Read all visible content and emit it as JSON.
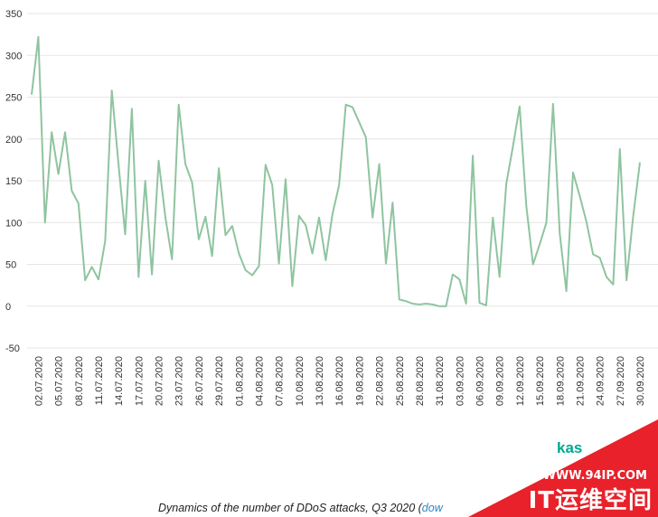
{
  "chart_data": {
    "type": "line",
    "title": "",
    "xlabel": "",
    "ylabel": "",
    "ylim": [
      -50,
      350
    ],
    "yticks": [
      350,
      300,
      250,
      200,
      150,
      100,
      50,
      0,
      -50
    ],
    "grid": true,
    "legend": "none",
    "line_color": "#8fc4a0",
    "tick_labels": [
      "02.07.2020",
      "05.07.2020",
      "08.07.2020",
      "11.07.2020",
      "14.07.2020",
      "17.07.2020",
      "20.07.2020",
      "23.07.2020",
      "26.07.2020",
      "29.07.2020",
      "01.08.2020",
      "04.08.2020",
      "07.08.2020",
      "10.08.2020",
      "13.08.2020",
      "16.08.2020",
      "19.08.2020",
      "22.08.2020",
      "25.08.2020",
      "28.08.2020",
      "31.08.2020",
      "03.09.2020",
      "06.09.2020",
      "09.09.2020",
      "12.09.2020",
      "15.09.2020",
      "18.09.2020",
      "21.09.2020",
      "24.09.2020",
      "27.09.2020",
      "30.09.2020"
    ],
    "x": [
      "01.07.2020",
      "02.07.2020",
      "03.07.2020",
      "04.07.2020",
      "05.07.2020",
      "06.07.2020",
      "07.07.2020",
      "08.07.2020",
      "09.07.2020",
      "10.07.2020",
      "11.07.2020",
      "12.07.2020",
      "13.07.2020",
      "14.07.2020",
      "15.07.2020",
      "16.07.2020",
      "17.07.2020",
      "18.07.2020",
      "19.07.2020",
      "20.07.2020",
      "21.07.2020",
      "22.07.2020",
      "23.07.2020",
      "24.07.2020",
      "25.07.2020",
      "26.07.2020",
      "27.07.2020",
      "28.07.2020",
      "29.07.2020",
      "30.07.2020",
      "31.07.2020",
      "01.08.2020",
      "02.08.2020",
      "03.08.2020",
      "04.08.2020",
      "05.08.2020",
      "06.08.2020",
      "07.08.2020",
      "08.08.2020",
      "09.08.2020",
      "10.08.2020",
      "11.08.2020",
      "12.08.2020",
      "13.08.2020",
      "14.08.2020",
      "15.08.2020",
      "16.08.2020",
      "17.08.2020",
      "18.08.2020",
      "19.08.2020",
      "20.08.2020",
      "21.08.2020",
      "22.08.2020",
      "23.08.2020",
      "24.08.2020",
      "25.08.2020",
      "26.08.2020",
      "27.08.2020",
      "28.08.2020",
      "29.08.2020",
      "30.08.2020",
      "31.08.2020",
      "01.09.2020",
      "02.09.2020",
      "03.09.2020",
      "04.09.2020",
      "05.09.2020",
      "06.09.2020",
      "07.09.2020",
      "08.09.2020",
      "09.09.2020",
      "10.09.2020",
      "11.09.2020",
      "12.09.2020",
      "13.09.2020",
      "14.09.2020",
      "15.09.2020",
      "16.09.2020",
      "17.09.2020",
      "18.09.2020",
      "19.09.2020",
      "20.09.2020",
      "21.09.2020",
      "22.09.2020",
      "23.09.2020",
      "24.09.2020",
      "25.09.2020",
      "26.09.2020",
      "27.09.2020",
      "28.09.2020",
      "29.09.2020",
      "30.09.2020"
    ],
    "series": [
      {
        "values": [
          253,
          322,
          100,
          208,
          158,
          208,
          138,
          123,
          31,
          47,
          32,
          78,
          258,
          170,
          86,
          236,
          35,
          150,
          38,
          174,
          107,
          56,
          241,
          170,
          148,
          80,
          107,
          60,
          165,
          85,
          96,
          63,
          43,
          37,
          48,
          169,
          145,
          51,
          152,
          24,
          108,
          97,
          63,
          106,
          55,
          110,
          145,
          241,
          238,
          220,
          202,
          106,
          170,
          51,
          124,
          8,
          6,
          3,
          2,
          3,
          2,
          0,
          0,
          38,
          32,
          3,
          180,
          4,
          1,
          106,
          35,
          146,
          191,
          239,
          120,
          50,
          74,
          100,
          242,
          87,
          18,
          160,
          132,
          101,
          62,
          58,
          35,
          26,
          188,
          31,
          108,
          172
        ]
      }
    ]
  },
  "caption": {
    "text": "Dynamics of the number of DDoS attacks, Q3 2020 (",
    "link": "dow"
  },
  "brand": {
    "text": "kas"
  },
  "watermark": {
    "url": "WWW.94IP.COM",
    "name": "IT运维空间",
    "color": "#e8212a"
  }
}
